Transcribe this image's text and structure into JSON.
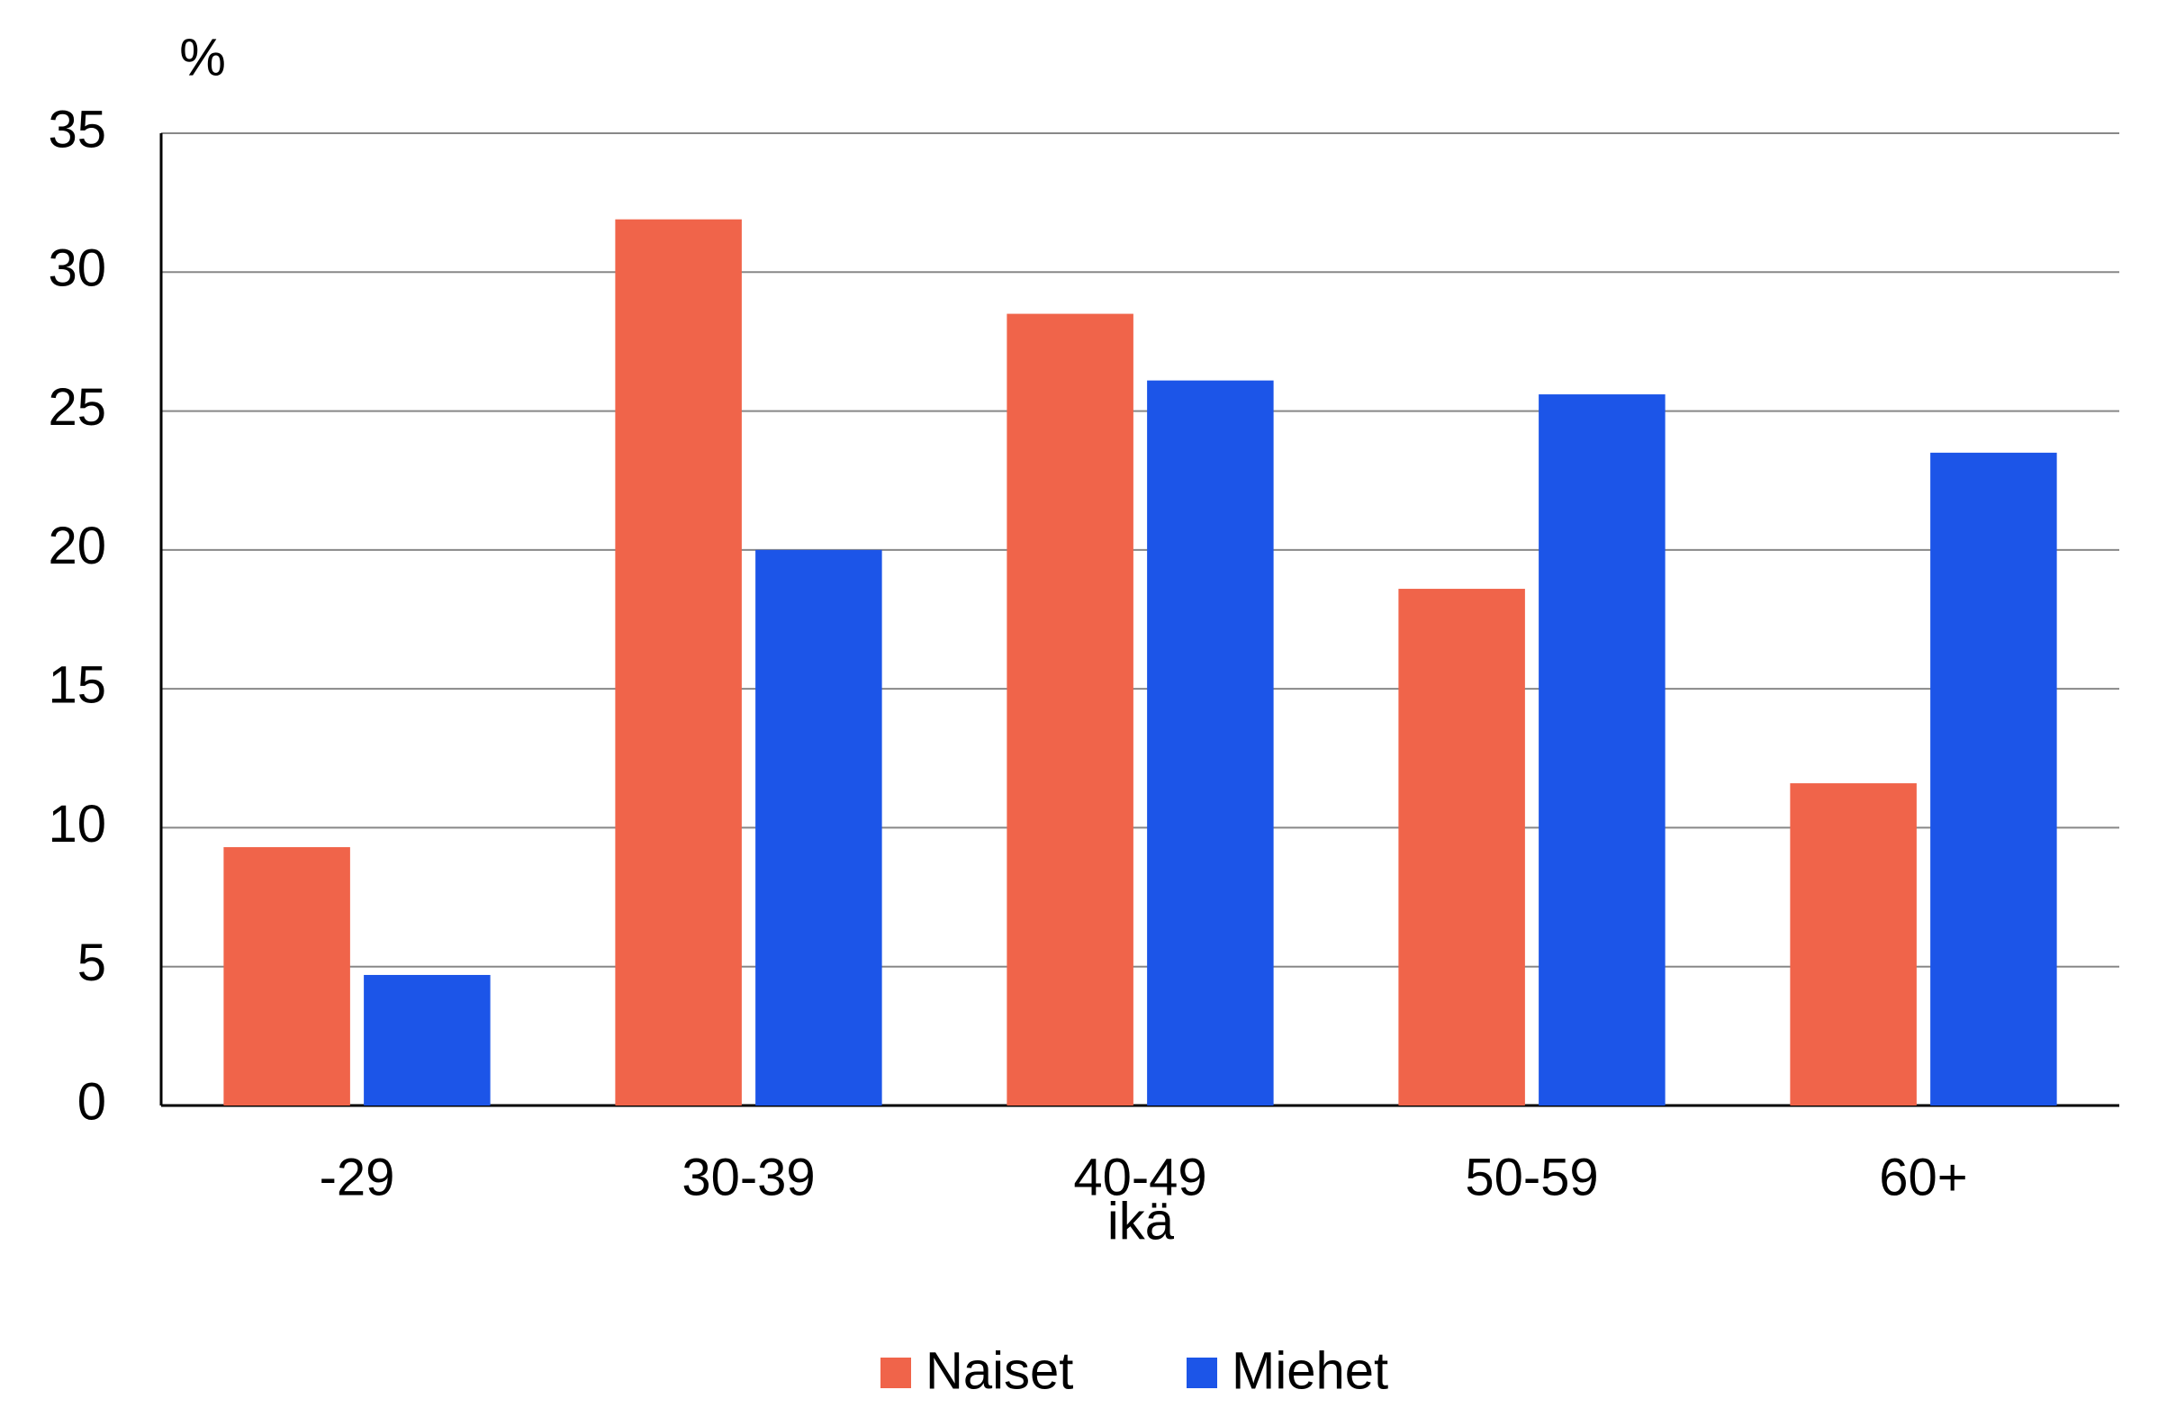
{
  "chart_data": {
    "type": "bar",
    "y_label": "%",
    "x_label": "ikä",
    "categories": [
      "-29",
      "30-39",
      "40-49",
      "50-59",
      "60+"
    ],
    "series": [
      {
        "name": "Naiset",
        "color": "#f0644a",
        "values": [
          9.3,
          31.9,
          28.5,
          18.6,
          11.6
        ]
      },
      {
        "name": "Miehet",
        "color": "#1c55e8",
        "values": [
          4.7,
          20.0,
          26.1,
          25.6,
          23.5
        ]
      }
    ],
    "ylim": [
      0,
      35
    ],
    "yticks": [
      0,
      5,
      10,
      15,
      20,
      25,
      30,
      35
    ],
    "grid": true,
    "legend": "bottom"
  }
}
